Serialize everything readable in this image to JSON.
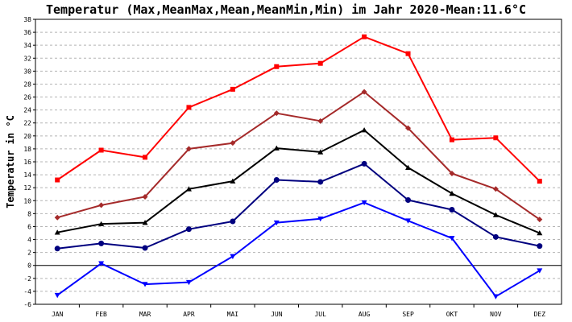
{
  "chart_data": {
    "type": "line",
    "title": "Temperatur (Max,MeanMax,Mean,MeanMin,Min) im Jahr 2020-Mean:11.6°C",
    "xlabel": "",
    "ylabel": "Temperatur in °C",
    "ylim": [
      -6,
      38
    ],
    "yticks": [
      -6,
      -4,
      -2,
      0,
      2,
      4,
      6,
      8,
      10,
      12,
      14,
      16,
      18,
      20,
      22,
      24,
      26,
      28,
      30,
      32,
      34,
      36,
      38
    ],
    "grid": true,
    "legend": "none",
    "categories": [
      "JAN",
      "FEB",
      "MAR",
      "APR",
      "MAI",
      "JUN",
      "JUL",
      "AUG",
      "SEP",
      "OKT",
      "NOV",
      "DEZ"
    ],
    "series": [
      {
        "values": [
          13.2,
          17.8,
          16.7,
          24.4,
          27.2,
          30.7,
          31.2,
          35.3,
          32.7,
          19.4,
          19.7,
          13.0
        ],
        "color": "#ff0000",
        "marker": "square"
      },
      {
        "values": [
          7.4,
          9.3,
          10.6,
          18.0,
          18.9,
          23.5,
          22.3,
          26.8,
          21.2,
          14.2,
          11.8,
          7.1
        ],
        "color": "#a52a2a",
        "marker": "diamond"
      },
      {
        "values": [
          5.1,
          6.4,
          6.6,
          11.8,
          13.0,
          18.1,
          17.5,
          20.9,
          15.1,
          11.1,
          7.8,
          5.0
        ],
        "color": "#000000",
        "marker": "triangle-up"
      },
      {
        "values": [
          2.6,
          3.4,
          2.7,
          5.6,
          6.8,
          13.2,
          12.9,
          15.7,
          10.1,
          8.6,
          4.4,
          3.0
        ],
        "color": "#00007f",
        "marker": "circle"
      },
      {
        "values": [
          -4.6,
          0.3,
          -2.9,
          -2.6,
          1.4,
          6.6,
          7.2,
          9.7,
          6.9,
          4.2,
          -4.8,
          -0.8
        ],
        "color": "#0000ff",
        "marker": "triangle-down"
      }
    ]
  }
}
